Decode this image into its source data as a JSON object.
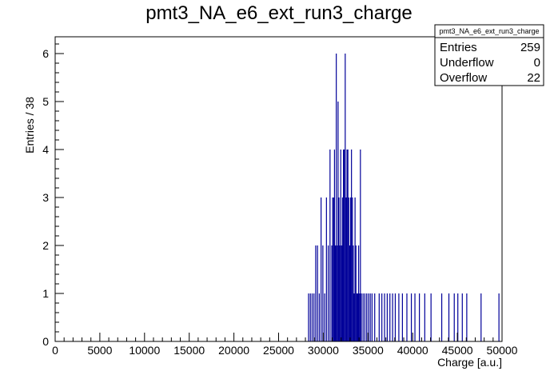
{
  "chart_data": {
    "type": "bar",
    "title": "pmt3_NA_e6_ext_run3_charge",
    "xlabel": "Charge [a.u.]",
    "ylabel": "Entries / 38",
    "xlim": [
      0,
      50000
    ],
    "ylim": [
      0,
      6.35
    ],
    "xticks": [
      "0",
      "5000",
      "10000",
      "15000",
      "20000",
      "25000",
      "30000",
      "35000",
      "40000",
      "45000",
      "50000"
    ],
    "yticks": [
      "0",
      "1",
      "2",
      "3",
      "4",
      "5",
      "6"
    ],
    "grid": false,
    "bar_color": "#000099",
    "stats_box": {
      "title": "pmt3_NA_e6_ext_run3_charge",
      "rows": [
        {
          "label": "Entries",
          "value": "259"
        },
        {
          "label": "Underflow",
          "value": "0"
        },
        {
          "label": "Overflow",
          "value": "22"
        }
      ]
    },
    "x": [
      28300,
      28500,
      28700,
      28900,
      29100,
      29300,
      29500,
      29700,
      29900,
      30100,
      30300,
      30500,
      30700,
      30900,
      31000,
      31100,
      31200,
      31300,
      31400,
      31500,
      31600,
      31700,
      31800,
      31900,
      32000,
      32100,
      32200,
      32300,
      32400,
      32500,
      32600,
      32700,
      32800,
      32900,
      33000,
      33100,
      33200,
      33300,
      33400,
      33500,
      33600,
      33700,
      33800,
      33900,
      34000,
      34100,
      34200,
      34400,
      34600,
      34800,
      35000,
      35200,
      35400,
      35700,
      36200,
      36500,
      36800,
      37100,
      37400,
      37700,
      38000,
      38400,
      38800,
      39300,
      39800,
      40200,
      40700,
      41300,
      42000,
      43200,
      44000,
      44600,
      45000,
      45500,
      46000,
      47600,
      49600
    ],
    "values": [
      1,
      1,
      1,
      1,
      2,
      2,
      1,
      3,
      2,
      1,
      3,
      2,
      4,
      2,
      3,
      3,
      4,
      2,
      6,
      2,
      5,
      3,
      2,
      4,
      2,
      3,
      4,
      4,
      6,
      3,
      4,
      4,
      3,
      2,
      3,
      4,
      3,
      2,
      1,
      3,
      2,
      1,
      1,
      2,
      1,
      4,
      1,
      1,
      1,
      1,
      1,
      1,
      1,
      1,
      1,
      1,
      1,
      1,
      1,
      1,
      1,
      1,
      1,
      1,
      1,
      1,
      1,
      1,
      1,
      1,
      1,
      1,
      1,
      1,
      1,
      1,
      1
    ]
  }
}
